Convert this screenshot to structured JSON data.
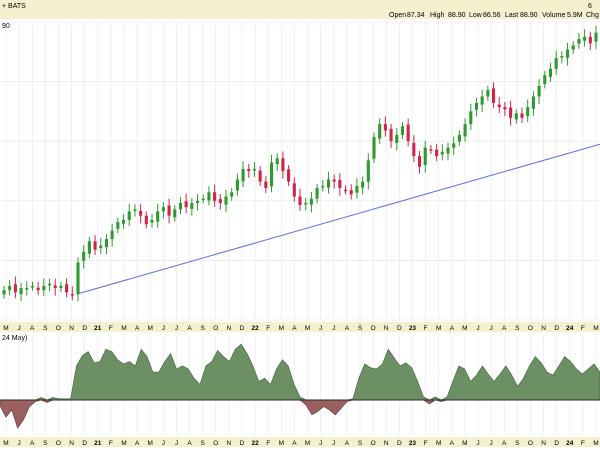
{
  "header": {
    "exchange": "+ BATS",
    "open_label": "Open",
    "open_value": "87.34",
    "high_label": "High",
    "high_value": "88.90",
    "low_label": "Low",
    "low_value": "86.56",
    "last_label": "Last",
    "last_value": "88.90",
    "volume_label": "Volume",
    "volume_value": "5.9M",
    "chg_label": "Chg",
    "top_right_digit": "6",
    "price_fragment": "90"
  },
  "indicator": {
    "label_fragment": "24 May)"
  },
  "colors": {
    "header_bg": "#f4f1cf",
    "separator_bg": "#f4f1cf",
    "up": "#2e9a2e",
    "down": "#d2244a",
    "trendline": "#5b6fe0",
    "area_pos": "#6d8f64",
    "area_neg": "#9a6060",
    "grid": "#e6e6e6",
    "zero_line": "#2a2a2a"
  },
  "chart_data": [
    {
      "type": "candlestick",
      "title": "",
      "x_tick_labels": [
        "M",
        "J",
        "A",
        "S",
        "O",
        "N",
        "D",
        "21",
        "F",
        "M",
        "A",
        "M",
        "J",
        "J",
        "A",
        "S",
        "O",
        "N",
        "D",
        "22",
        "F",
        "M",
        "A",
        "M",
        "J",
        "J",
        "A",
        "S",
        "O",
        "N",
        "D",
        "23",
        "F",
        "M",
        "A",
        "M",
        "J",
        "J",
        "A",
        "S",
        "O",
        "N",
        "D",
        "24",
        "F",
        "M"
      ],
      "x_tick_bold": [
        "21",
        "22",
        "23",
        "24"
      ],
      "grid": true,
      "trendline": {
        "from": 0.13,
        "to": 1.0,
        "y_from": 0.088,
        "y_to": 0.59
      },
      "closes": [
        0.14,
        0.16,
        0.13,
        0.15,
        0.15,
        0.16,
        0.14,
        0.16,
        0.17,
        0.15,
        0.16,
        0.13,
        0.12,
        0.27,
        0.32,
        0.37,
        0.33,
        0.35,
        0.38,
        0.42,
        0.46,
        0.47,
        0.51,
        0.52,
        0.49,
        0.45,
        0.47,
        0.51,
        0.53,
        0.49,
        0.52,
        0.55,
        0.53,
        0.55,
        0.56,
        0.57,
        0.6,
        0.56,
        0.55,
        0.58,
        0.6,
        0.66,
        0.71,
        0.7,
        0.71,
        0.65,
        0.62,
        0.74,
        0.76,
        0.7,
        0.65,
        0.58,
        0.54,
        0.55,
        0.57,
        0.62,
        0.63,
        0.66,
        0.65,
        0.62,
        0.61,
        0.59,
        0.63,
        0.65,
        0.75,
        0.86,
        0.92,
        0.89,
        0.84,
        0.87,
        0.91,
        0.84,
        0.77,
        0.72,
        0.81,
        0.8,
        0.77,
        0.79,
        0.81,
        0.83,
        0.87,
        0.92,
        0.98,
        1.02,
        1.05,
        1.08,
        1.02,
        1.0,
        0.99,
        0.95,
        0.97,
        0.95,
        1.0,
        1.05,
        1.1,
        1.15,
        1.18,
        1.23,
        1.24,
        1.27,
        1.29,
        1.32,
        1.33,
        1.3,
        1.35
      ],
      "ylim": [
        0.0,
        1.4
      ]
    },
    {
      "type": "area",
      "title": "",
      "values": [
        -0.18,
        -0.52,
        -0.3,
        -0.85,
        -0.6,
        -0.2,
        -0.05,
        0.04,
        -0.08,
        0.04,
        0.02,
        0.02,
        0.02,
        0.55,
        0.72,
        0.78,
        0.6,
        0.62,
        0.82,
        0.78,
        0.65,
        0.58,
        0.62,
        0.55,
        0.82,
        0.7,
        0.45,
        0.45,
        0.62,
        0.75,
        0.5,
        0.55,
        0.5,
        0.35,
        0.25,
        0.55,
        0.62,
        0.8,
        0.7,
        0.62,
        0.82,
        0.9,
        0.75,
        0.55,
        0.3,
        0.35,
        0.25,
        0.5,
        0.65,
        0.55,
        0.25,
        0.05,
        -0.15,
        -0.45,
        -0.35,
        -0.2,
        -0.3,
        -0.45,
        -0.25,
        -0.05,
        0.02,
        0.35,
        0.58,
        0.52,
        0.5,
        0.58,
        0.82,
        0.68,
        0.55,
        0.6,
        0.52,
        0.3,
        0.05,
        -0.12,
        0.05,
        -0.05,
        0.05,
        0.3,
        0.55,
        0.5,
        0.3,
        0.4,
        0.55,
        0.42,
        0.3,
        0.42,
        0.55,
        0.4,
        0.22,
        0.35,
        0.55,
        0.7,
        0.6,
        0.45,
        0.4,
        0.55,
        0.7,
        0.62,
        0.5,
        0.42,
        0.5,
        0.58,
        0.45
      ],
      "ylim": [
        -1.0,
        1.0
      ]
    }
  ]
}
